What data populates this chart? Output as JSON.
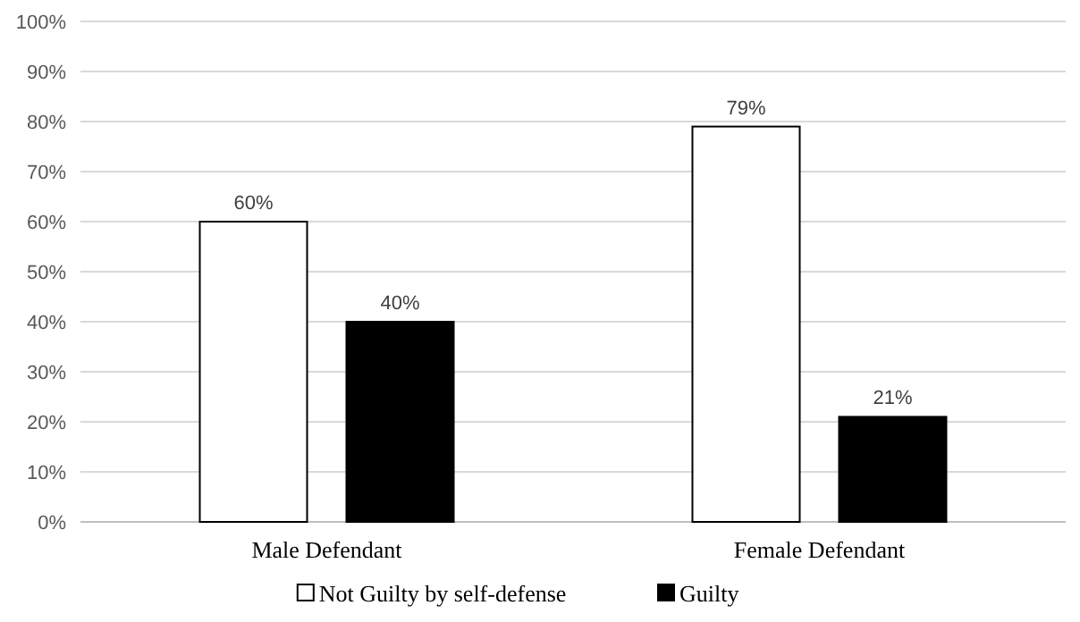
{
  "chart_data": {
    "type": "bar",
    "categories": [
      "Male Defendant",
      "Female Defendant"
    ],
    "series": [
      {
        "name": "Not Guilty by self-defense",
        "color": "#ffffff",
        "values": [
          60,
          79
        ],
        "value_labels": [
          "60%",
          "79%"
        ]
      },
      {
        "name": "Guilty",
        "color": "#000000",
        "values": [
          40,
          21
        ],
        "value_labels": [
          "40%",
          "21%"
        ]
      }
    ],
    "ylim": [
      0,
      100
    ],
    "yticks": [
      {
        "value": 0,
        "label": "0%"
      },
      {
        "value": 10,
        "label": "10%"
      },
      {
        "value": 20,
        "label": "20%"
      },
      {
        "value": 30,
        "label": "30%"
      },
      {
        "value": 40,
        "label": "40%"
      },
      {
        "value": 50,
        "label": "50%"
      },
      {
        "value": 60,
        "label": "60%"
      },
      {
        "value": 70,
        "label": "70%"
      },
      {
        "value": 80,
        "label": "80%"
      },
      {
        "value": 90,
        "label": "90%"
      },
      {
        "value": 100,
        "label": "100%"
      }
    ],
    "grid": "y",
    "legend": "bottom"
  }
}
